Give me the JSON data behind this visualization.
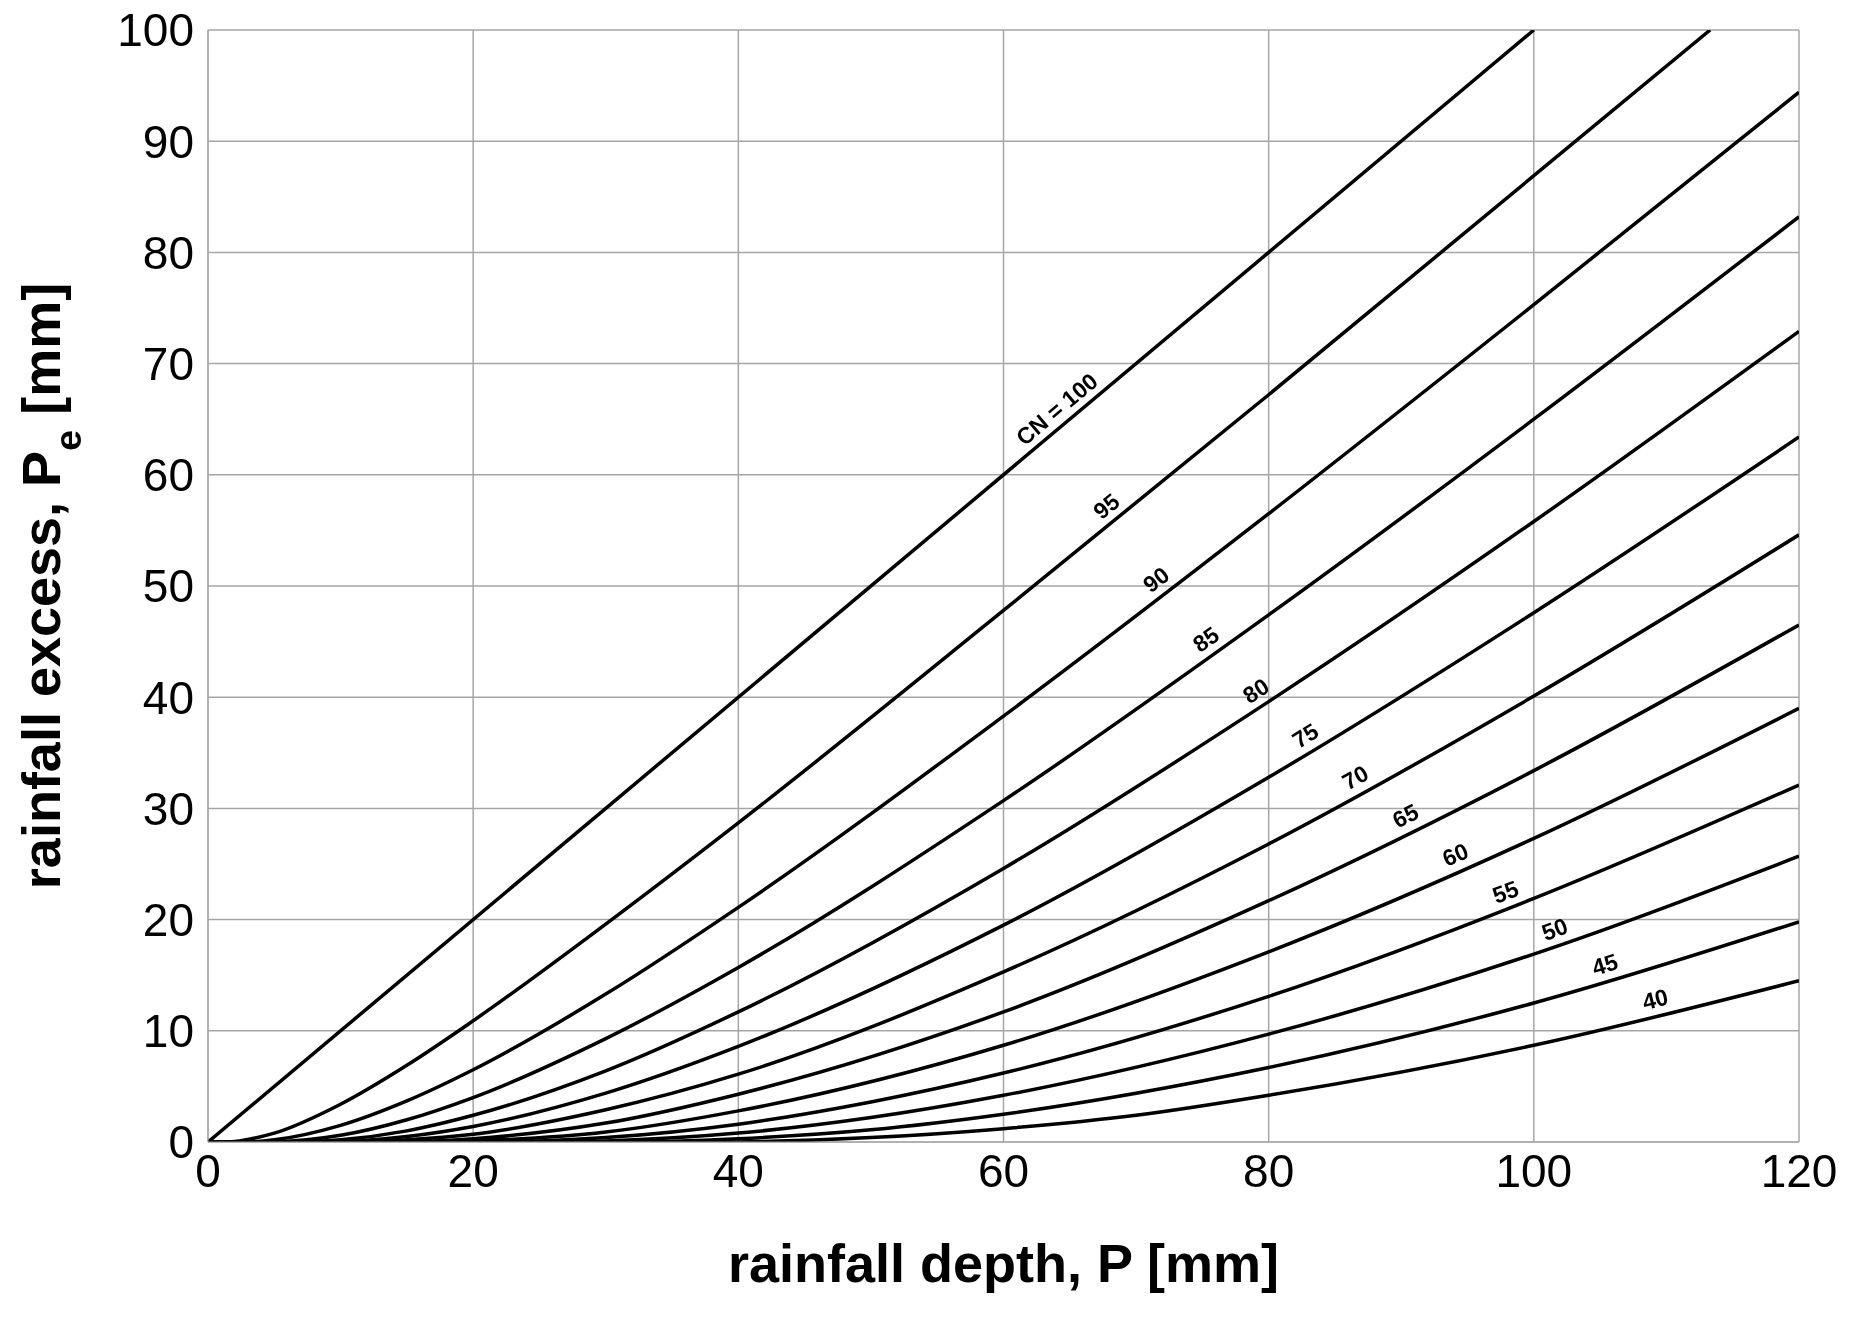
{
  "chart_data": {
    "type": "line",
    "xlabel": "rainfall depth, P [mm]",
    "ylabel": "rainfall excess, P$_{e}$ [mm]",
    "xlim": [
      0,
      120
    ],
    "xticks": [
      0,
      20,
      40,
      60,
      80,
      100,
      120
    ],
    "ylim": [
      0,
      100
    ],
    "yticks": [
      0,
      10,
      20,
      30,
      40,
      50,
      60,
      70,
      80,
      90,
      100
    ],
    "grid": true,
    "legend": false,
    "marker": "none",
    "line_style": "solid",
    "series": [
      {
        "name": "CN = 100",
        "color": "#000000",
        "x": [
          0,
          100
        ],
        "values": [
          0,
          100
        ]
      },
      {
        "name": "95",
        "color": "#000000",
        "x": [
          0,
          1.3,
          5,
          10,
          15,
          20,
          30,
          40,
          60,
          80,
          100,
          113.3
        ],
        "values": [
          0,
          0,
          0.8,
          3.4,
          6.9,
          10.9,
          19.6,
          28.7,
          47.8,
          67.2,
          86.9,
          100
        ]
      },
      {
        "name": "90",
        "color": "#000000",
        "x": [
          0,
          2.8,
          5,
          10,
          15,
          20,
          30,
          40,
          60,
          80,
          100,
          120
        ],
        "values": [
          0,
          0,
          0.2,
          1.5,
          3.7,
          6.5,
          13.3,
          21.1,
          38.3,
          56.5,
          75.3,
          94.4
        ]
      },
      {
        "name": "85",
        "color": "#000000",
        "x": [
          0,
          4.5,
          10,
          15,
          20,
          30,
          40,
          60,
          80,
          100,
          120
        ],
        "values": [
          0,
          0,
          0.6,
          2.0,
          4.0,
          9.3,
          15.7,
          30.7,
          47.4,
          65.0,
          83.2
        ]
      },
      {
        "name": "80",
        "color": "#000000",
        "x": [
          0,
          6.4,
          10,
          15,
          20,
          30,
          40,
          60,
          80,
          100,
          120
        ],
        "values": [
          0,
          0,
          0.2,
          1.0,
          2.4,
          6.4,
          11.7,
          24.6,
          39.6,
          55.8,
          72.9
        ]
      },
      {
        "name": "75",
        "color": "#000000",
        "x": [
          0,
          8.5,
          15,
          20,
          30,
          40,
          60,
          80,
          100,
          120
        ],
        "values": [
          0,
          0,
          0.5,
          1.4,
          4.4,
          8.6,
          19.5,
          32.8,
          47.6,
          63.4
        ]
      },
      {
        "name": "70",
        "color": "#000000",
        "x": [
          0,
          10.9,
          15,
          20,
          30,
          40,
          60,
          80,
          100,
          120
        ],
        "values": [
          0,
          0,
          0.2,
          0.7,
          2.9,
          6.1,
          15.3,
          26.8,
          40.1,
          54.6
        ]
      },
      {
        "name": "65",
        "color": "#000000",
        "x": [
          0,
          13.7,
          20,
          30,
          40,
          60,
          80,
          100,
          120
        ],
        "values": [
          0,
          0,
          0.3,
          1.7,
          4.3,
          11.7,
          21.7,
          33.4,
          46.5
        ]
      },
      {
        "name": "60",
        "color": "#000000",
        "x": [
          0,
          16.9,
          20,
          30,
          40,
          60,
          80,
          100,
          120
        ],
        "values": [
          0,
          0,
          0.1,
          0.9,
          2.8,
          8.7,
          17.1,
          27.3,
          39.0
        ]
      },
      {
        "name": "55",
        "color": "#000000",
        "x": [
          0,
          20.8,
          30,
          40,
          50,
          60,
          80,
          100,
          120
        ],
        "values": [
          0,
          0,
          0.4,
          1.6,
          3.6,
          6.2,
          13.1,
          21.9,
          32.1
        ]
      },
      {
        "name": "50",
        "color": "#000000",
        "x": [
          0,
          25.4,
          30,
          40,
          50,
          60,
          80,
          100,
          120
        ],
        "values": [
          0,
          0,
          0.1,
          0.8,
          2.2,
          4.2,
          9.7,
          16.9,
          25.7
        ]
      },
      {
        "name": "45",
        "color": "#000000",
        "x": [
          0,
          31,
          40,
          50,
          60,
          80,
          100,
          120
        ],
        "values": [
          0,
          0,
          0.3,
          1.1,
          2.5,
          6.7,
          12.5,
          19.8
        ]
      },
      {
        "name": "40",
        "color": "#000000",
        "x": [
          0,
          38.1,
          50,
          60,
          70,
          80,
          100,
          120
        ],
        "values": [
          0,
          0,
          0.4,
          1.2,
          2.4,
          4.2,
          8.7,
          14.5
        ]
      }
    ]
  }
}
